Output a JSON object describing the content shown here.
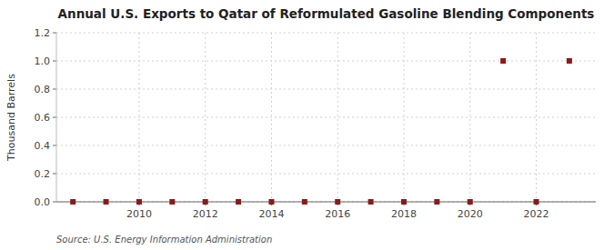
{
  "chart_data": {
    "type": "scatter",
    "title": "Annual U.S. Exports to Qatar of Reformulated Gasoline Blending Components",
    "ylabel": "Thousand Barrels",
    "source": "Source: U.S. Energy Information Administration",
    "x": [
      2008,
      2009,
      2010,
      2011,
      2012,
      2013,
      2014,
      2015,
      2016,
      2017,
      2018,
      2019,
      2020,
      2021,
      2022,
      2023
    ],
    "values": [
      0,
      0,
      0,
      0,
      0,
      0,
      0,
      0,
      0,
      0,
      0,
      0,
      0,
      1,
      0,
      1
    ],
    "color": "#8b1a1a",
    "marker": "square",
    "xlim": [
      2007.5,
      2023.8
    ],
    "ylim": [
      0,
      1.2
    ],
    "xticks": [
      2010,
      2012,
      2014,
      2016,
      2018,
      2020,
      2022
    ],
    "yticks": [
      {
        "value": 0.0,
        "label": "0.0"
      },
      0.2,
      0.4,
      0.6,
      0.8,
      {
        "value": 1.0,
        "label": "1.0"
      },
      1.2
    ],
    "grid": true
  }
}
